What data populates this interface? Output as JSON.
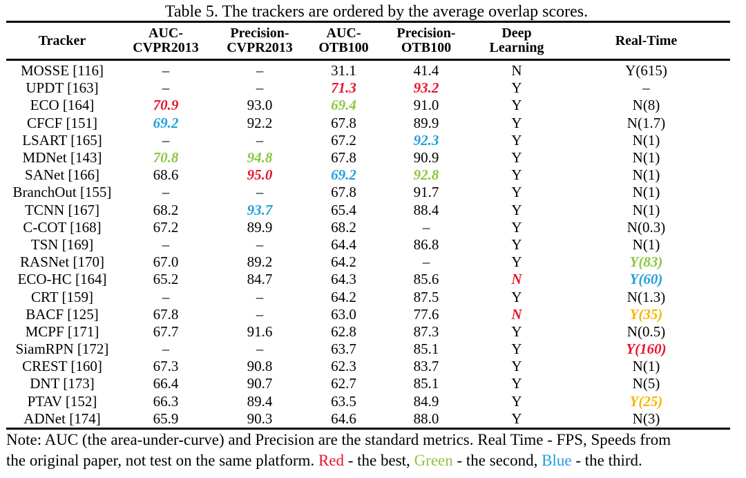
{
  "caption": "Table 5. The trackers are ordered by the average overlap scores.",
  "colors": {
    "red": "#e8142c",
    "green": "#8dc63f",
    "blue": "#1ea0dc",
    "yellow": "#f7b500"
  },
  "headers": [
    [
      "Tracker"
    ],
    [
      "AUC-",
      "CVPR2013"
    ],
    [
      "Precision-",
      "CVPR2013"
    ],
    [
      "AUC-",
      "OTB100"
    ],
    [
      "Precision-",
      "OTB100"
    ],
    [
      "Deep",
      "Learning"
    ],
    [
      "Real-Time"
    ]
  ],
  "rows": [
    [
      {
        "t": "MOSSE [116]"
      },
      {
        "t": "–"
      },
      {
        "t": "–"
      },
      {
        "t": "31.1"
      },
      {
        "t": "41.4"
      },
      {
        "t": "N"
      },
      {
        "t": "Y(615)"
      }
    ],
    [
      {
        "t": "UPDT [163]"
      },
      {
        "t": "–"
      },
      {
        "t": "–"
      },
      {
        "t": "71.3",
        "c": "red"
      },
      {
        "t": "93.2",
        "c": "red"
      },
      {
        "t": "Y"
      },
      {
        "t": "–"
      }
    ],
    [
      {
        "t": "ECO [164]"
      },
      {
        "t": "70.9",
        "c": "red"
      },
      {
        "t": "93.0"
      },
      {
        "t": "69.4",
        "c": "green"
      },
      {
        "t": "91.0"
      },
      {
        "t": "Y"
      },
      {
        "t": "N(8)"
      }
    ],
    [
      {
        "t": "CFCF [151]"
      },
      {
        "t": "69.2",
        "c": "blue"
      },
      {
        "t": "92.2"
      },
      {
        "t": "67.8"
      },
      {
        "t": "89.9"
      },
      {
        "t": "Y"
      },
      {
        "t": "N(1.7)"
      }
    ],
    [
      {
        "t": "LSART [165]"
      },
      {
        "t": "–"
      },
      {
        "t": "–"
      },
      {
        "t": "67.2"
      },
      {
        "t": "92.3",
        "c": "blue"
      },
      {
        "t": "Y"
      },
      {
        "t": "N(1)"
      }
    ],
    [
      {
        "t": "MDNet [143]"
      },
      {
        "t": "70.8",
        "c": "green"
      },
      {
        "t": "94.8",
        "c": "green"
      },
      {
        "t": "67.8"
      },
      {
        "t": "90.9"
      },
      {
        "t": "Y"
      },
      {
        "t": "N(1)"
      }
    ],
    [
      {
        "t": "SANet [166]"
      },
      {
        "t": "68.6"
      },
      {
        "t": "95.0",
        "c": "red"
      },
      {
        "t": "69.2",
        "c": "blue"
      },
      {
        "t": "92.8",
        "c": "green"
      },
      {
        "t": "Y"
      },
      {
        "t": "N(1)"
      }
    ],
    [
      {
        "t": "BranchOut [155]"
      },
      {
        "t": "–"
      },
      {
        "t": "–"
      },
      {
        "t": "67.8"
      },
      {
        "t": "91.7"
      },
      {
        "t": "Y"
      },
      {
        "t": "N(1)"
      }
    ],
    [
      {
        "t": "TCNN [167]"
      },
      {
        "t": "68.2"
      },
      {
        "t": "93.7",
        "c": "blue"
      },
      {
        "t": "65.4"
      },
      {
        "t": "88.4"
      },
      {
        "t": "Y"
      },
      {
        "t": "N(1)"
      }
    ],
    [
      {
        "t": "C-COT [168]"
      },
      {
        "t": "67.2"
      },
      {
        "t": "89.9"
      },
      {
        "t": "68.2"
      },
      {
        "t": "–"
      },
      {
        "t": "Y"
      },
      {
        "t": "N(0.3)"
      }
    ],
    [
      {
        "t": "TSN [169]"
      },
      {
        "t": "–"
      },
      {
        "t": "–"
      },
      {
        "t": "64.4"
      },
      {
        "t": "86.8"
      },
      {
        "t": "Y"
      },
      {
        "t": "N(1)"
      }
    ],
    [
      {
        "t": "RASNet [170]"
      },
      {
        "t": "67.0"
      },
      {
        "t": "89.2"
      },
      {
        "t": "64.2"
      },
      {
        "t": "–"
      },
      {
        "t": "Y"
      },
      {
        "t": "Y(83)",
        "c": "green"
      }
    ],
    [
      {
        "t": "ECO-HC [164]"
      },
      {
        "t": "65.2"
      },
      {
        "t": "84.7"
      },
      {
        "t": "64.3"
      },
      {
        "t": "85.6"
      },
      {
        "t": "N",
        "c": "red"
      },
      {
        "t": "Y(60)",
        "c": "blue"
      }
    ],
    [
      {
        "t": "CRT [159]"
      },
      {
        "t": "–"
      },
      {
        "t": "–"
      },
      {
        "t": "64.2"
      },
      {
        "t": "87.5"
      },
      {
        "t": "Y"
      },
      {
        "t": "N(1.3)"
      }
    ],
    [
      {
        "t": "BACF [125]"
      },
      {
        "t": "67.8"
      },
      {
        "t": "–"
      },
      {
        "t": "63.0"
      },
      {
        "t": "77.6"
      },
      {
        "t": "N",
        "c": "red"
      },
      {
        "t": "Y(35)",
        "c": "yellow"
      }
    ],
    [
      {
        "t": "MCPF [171]"
      },
      {
        "t": "67.7"
      },
      {
        "t": "91.6"
      },
      {
        "t": "62.8"
      },
      {
        "t": "87.3"
      },
      {
        "t": "Y"
      },
      {
        "t": "N(0.5)"
      }
    ],
    [
      {
        "t": "SiamRPN [172]"
      },
      {
        "t": "–"
      },
      {
        "t": "–"
      },
      {
        "t": "63.7"
      },
      {
        "t": "85.1"
      },
      {
        "t": "Y"
      },
      {
        "t": "Y(160)",
        "c": "red"
      }
    ],
    [
      {
        "t": "CREST [160]"
      },
      {
        "t": "67.3"
      },
      {
        "t": "90.8"
      },
      {
        "t": "62.3"
      },
      {
        "t": "83.7"
      },
      {
        "t": "Y"
      },
      {
        "t": "N(1)"
      }
    ],
    [
      {
        "t": "DNT [173]"
      },
      {
        "t": "66.4"
      },
      {
        "t": "90.7"
      },
      {
        "t": "62.7"
      },
      {
        "t": "85.1"
      },
      {
        "t": "Y"
      },
      {
        "t": "N(5)"
      }
    ],
    [
      {
        "t": "PTAV [152]"
      },
      {
        "t": "66.3"
      },
      {
        "t": "89.4"
      },
      {
        "t": "63.5"
      },
      {
        "t": "84.9"
      },
      {
        "t": "Y"
      },
      {
        "t": "Y(25)",
        "c": "yellow"
      }
    ],
    [
      {
        "t": "ADNet [174]"
      },
      {
        "t": "65.9"
      },
      {
        "t": "90.3"
      },
      {
        "t": "64.6"
      },
      {
        "t": "88.0"
      },
      {
        "t": "Y"
      },
      {
        "t": "N(3)"
      }
    ]
  ],
  "note": {
    "line1": "Note: AUC (the area-under-curve) and Precision are the standard metrics. Real Time - FPS, Speeds from",
    "line2_prefix": "the original paper, not test on the same platform. ",
    "red_label": "Red",
    "red_text": " - the best, ",
    "green_label": "Green",
    "green_text": " - the second, ",
    "blue_label": "Blue",
    "blue_text": " - the third."
  }
}
